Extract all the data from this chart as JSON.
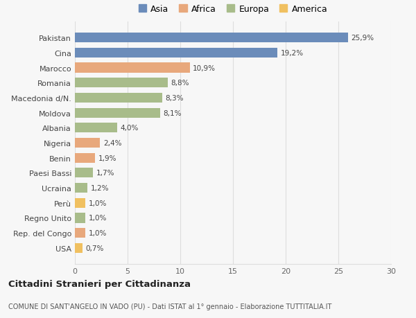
{
  "categories": [
    "Pakistan",
    "Cina",
    "Marocco",
    "Romania",
    "Macedonia d/N.",
    "Moldova",
    "Albania",
    "Nigeria",
    "Benin",
    "Paesi Bassi",
    "Ucraina",
    "Perù",
    "Regno Unito",
    "Rep. del Congo",
    "USA"
  ],
  "values": [
    25.9,
    19.2,
    10.9,
    8.8,
    8.3,
    8.1,
    4.0,
    2.4,
    1.9,
    1.7,
    1.2,
    1.0,
    1.0,
    1.0,
    0.7
  ],
  "labels": [
    "25,9%",
    "19,2%",
    "10,9%",
    "8,8%",
    "8,3%",
    "8,1%",
    "4,0%",
    "2,4%",
    "1,9%",
    "1,7%",
    "1,2%",
    "1,0%",
    "1,0%",
    "1,0%",
    "0,7%"
  ],
  "colors": [
    "#6b8cba",
    "#6b8cba",
    "#e8a87c",
    "#a8bc8a",
    "#a8bc8a",
    "#a8bc8a",
    "#a8bc8a",
    "#e8a87c",
    "#e8a87c",
    "#a8bc8a",
    "#a8bc8a",
    "#f0c060",
    "#a8bc8a",
    "#e8a87c",
    "#f0c060"
  ],
  "continent_labels": [
    "Asia",
    "Africa",
    "Europa",
    "America"
  ],
  "continent_colors": [
    "#6b8cba",
    "#e8a87c",
    "#a8bc8a",
    "#f0c060"
  ],
  "xlim": [
    0,
    30
  ],
  "xticks": [
    0,
    5,
    10,
    15,
    20,
    25,
    30
  ],
  "title": "Cittadini Stranieri per Cittadinanza",
  "subtitle": "COMUNE DI SANT'ANGELO IN VADO (PU) - Dati ISTAT al 1° gennaio - Elaborazione TUTTITALIA.IT",
  "bg_color": "#f7f7f7",
  "grid_color": "#dddddd",
  "bar_height": 0.65
}
